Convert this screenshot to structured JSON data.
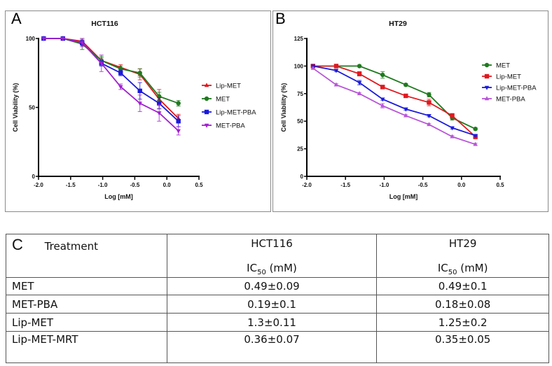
{
  "chart_data": [
    {
      "type": "line",
      "panel_label": "A",
      "title": "HCT116",
      "xlabel": "Log [mM]",
      "ylabel": "Cell Viability (%)",
      "xlim": [
        -2.0,
        0.5
      ],
      "ylim": [
        0,
        100
      ],
      "x_ticks": [
        "-2.0",
        "-1.5",
        "-1.0",
        "-0.5",
        "0.0",
        "0.5"
      ],
      "y_ticks": [
        "0",
        "50",
        "100"
      ],
      "legend_position": "right",
      "grid": false,
      "x": [
        -1.92,
        -1.62,
        -1.32,
        -1.02,
        -0.72,
        -0.42,
        -0.12,
        0.18
      ],
      "series": [
        {
          "name": "Lip-MET",
          "color": "#e0191f",
          "marker": "triangle-up",
          "values": [
            100,
            100,
            98,
            84,
            79,
            74,
            56,
            42
          ],
          "errors": [
            0,
            0,
            2,
            2,
            2,
            4,
            7,
            3
          ]
        },
        {
          "name": "MET",
          "color": "#1f7a1f",
          "marker": "circle",
          "values": [
            100,
            100,
            96,
            84,
            78,
            75,
            58,
            53
          ],
          "errors": [
            0,
            0,
            4,
            3,
            2,
            3,
            3,
            2
          ]
        },
        {
          "name": "Lip-MET-PBA",
          "color": "#1a1adb",
          "marker": "square",
          "values": [
            100,
            100,
            97,
            82,
            75,
            62,
            53,
            40
          ],
          "errors": [
            0,
            0,
            2,
            2,
            2,
            6,
            4,
            4
          ]
        },
        {
          "name": "MET-PBA",
          "color": "#a020d0",
          "marker": "triangle-down",
          "values": [
            100,
            100,
            97,
            82,
            65,
            53,
            46,
            33
          ],
          "errors": [
            0,
            0,
            3,
            6,
            2,
            6,
            6,
            3
          ]
        }
      ]
    },
    {
      "type": "line",
      "panel_label": "B",
      "title": "HT29",
      "xlabel": "Log [mM]",
      "ylabel": "Cell Viability (%)",
      "xlim": [
        -2.0,
        0.5
      ],
      "ylim": [
        0,
        125
      ],
      "x_ticks": [
        "-2.0",
        "-1.5",
        "-1.0",
        "-0.5",
        "0.0",
        "0.5"
      ],
      "y_ticks": [
        "0",
        "25",
        "50",
        "75",
        "100",
        "125"
      ],
      "legend_position": "right",
      "grid": false,
      "x": [
        -1.92,
        -1.62,
        -1.32,
        -1.02,
        -0.72,
        -0.42,
        -0.12,
        0.18
      ],
      "series": [
        {
          "name": "MET",
          "color": "#1f7a1f",
          "marker": "circle",
          "values": [
            100,
            100,
            100,
            92,
            83,
            74,
            53,
            43
          ],
          "errors": [
            0,
            0,
            0,
            3,
            1,
            2,
            2,
            1
          ]
        },
        {
          "name": "Lip-MET",
          "color": "#e0191f",
          "marker": "square",
          "values": [
            100,
            100,
            93,
            81,
            73,
            67,
            55,
            36
          ],
          "errors": [
            0,
            0,
            2,
            1,
            1,
            3,
            2,
            2
          ]
        },
        {
          "name": "Lip-MET-PBA",
          "color": "#1a1adb",
          "marker": "triangle-down",
          "values": [
            100,
            96,
            85,
            70,
            61,
            55,
            44,
            37
          ],
          "errors": [
            0,
            1,
            2,
            1,
            1,
            1,
            1,
            1
          ]
        },
        {
          "name": "MET-PBA",
          "color": "#b855d8",
          "marker": "triangle-up",
          "values": [
            98,
            83,
            75,
            64,
            55,
            47,
            36,
            29
          ],
          "errors": [
            0,
            1,
            1,
            2,
            1,
            1,
            1,
            1
          ]
        }
      ]
    }
  ],
  "table": {
    "panel_label": "C",
    "header": {
      "treatment": "Treatment",
      "col1_name": "HCT116",
      "col2_name": "HT29",
      "ic_prefix": "IC",
      "ic_sub": "50",
      "ic_unit": " (mM)"
    },
    "rows": [
      {
        "treatment": "MET",
        "hct116": "0.49±0.09",
        "ht29": "0.49±0.1"
      },
      {
        "treatment": "MET-PBA",
        "hct116": "0.19±0.1",
        "ht29": "0.18±0.08"
      },
      {
        "treatment": "Lip-MET",
        "hct116": "1.3±0.11",
        "ht29": "1.25±0.2"
      },
      {
        "treatment": "Lip-MET-MRT",
        "hct116": "0.36±0.07",
        "ht29": "0.35±0.05"
      }
    ]
  }
}
